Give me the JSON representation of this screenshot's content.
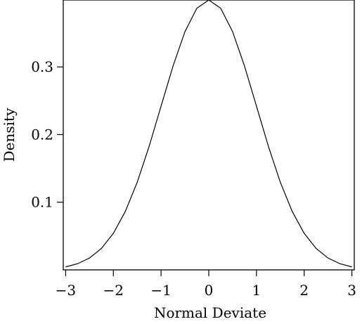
{
  "chart_data": {
    "type": "line",
    "title": "",
    "xlabel": "Normal Deviate",
    "ylabel": "Density",
    "xlim": [
      -3.05,
      3.05
    ],
    "ylim": [
      0.0,
      0.398942
    ],
    "grid": false,
    "x_ticks": [
      -3,
      -2,
      -1,
      0,
      1,
      2,
      3
    ],
    "x_tick_labels": [
      "−3",
      "−2",
      "−1",
      "0",
      "1",
      "2",
      "3"
    ],
    "y_ticks": [
      0.1,
      0.2,
      0.3
    ],
    "y_tick_labels": [
      "0.1",
      "0.2",
      "0.3"
    ],
    "series": [
      {
        "x": [
          -3.0,
          -2.75,
          -2.5,
          -2.25,
          -2.0,
          -1.75,
          -1.5,
          -1.25,
          -1.0,
          -0.75,
          -0.5,
          -0.25,
          0.0,
          0.25,
          0.5,
          0.75,
          1.0,
          1.25,
          1.5,
          1.75,
          2.0,
          2.25,
          2.5,
          2.75,
          3.0
        ],
        "y": [
          0.0044,
          0.0091,
          0.0175,
          0.0317,
          0.054,
          0.0863,
          0.1295,
          0.1826,
          0.242,
          0.3011,
          0.3521,
          0.3867,
          0.3989,
          0.3867,
          0.3521,
          0.3011,
          0.242,
          0.1826,
          0.1295,
          0.0863,
          0.054,
          0.0317,
          0.0175,
          0.0091,
          0.0044
        ]
      }
    ],
    "colors": {
      "line": "#000000",
      "axis": "#000000",
      "background": "#ffffff"
    }
  }
}
